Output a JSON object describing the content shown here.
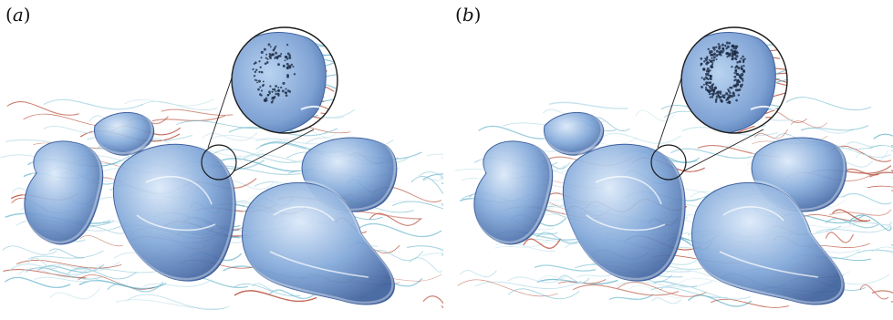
{
  "figure": {
    "panels": [
      {
        "id": "a",
        "label_open": "(",
        "label_letter": "a",
        "label_close": ")"
      },
      {
        "id": "b",
        "label_open": "(",
        "label_letter": "b",
        "label_close": ")"
      }
    ]
  },
  "colors": {
    "body_fill": "#7fa6d8",
    "body_highlight": "#dbe9f9",
    "body_shadow": "#3d5f9c",
    "warm_streamline": "#b4452f",
    "cool_streamline": "#6fb9cf",
    "pale_streamline": "#bfe0ea",
    "particle": "#1c2a44"
  }
}
